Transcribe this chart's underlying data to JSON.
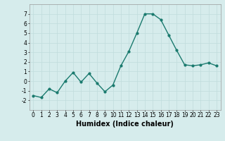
{
  "x": [
    0,
    1,
    2,
    3,
    4,
    5,
    6,
    7,
    8,
    9,
    10,
    11,
    12,
    13,
    14,
    15,
    16,
    17,
    18,
    19,
    20,
    21,
    22,
    23
  ],
  "y": [
    -1.5,
    -1.7,
    -0.8,
    -1.2,
    0.0,
    0.9,
    -0.1,
    0.8,
    -0.2,
    -1.1,
    -0.4,
    1.6,
    3.1,
    5.0,
    7.0,
    7.0,
    6.4,
    4.8,
    3.2,
    1.7,
    1.6,
    1.7,
    1.9,
    1.6
  ],
  "line_color": "#1a7a6e",
  "marker": "o",
  "marker_size": 2,
  "linewidth": 1.0,
  "xlabel": "Humidex (Indice chaleur)",
  "xlabel_fontsize": 7,
  "ylim": [
    -3,
    8
  ],
  "xlim": [
    -0.5,
    23.5
  ],
  "yticks": [
    -2,
    -1,
    0,
    1,
    2,
    3,
    4,
    5,
    6,
    7
  ],
  "xticks": [
    0,
    1,
    2,
    3,
    4,
    5,
    6,
    7,
    8,
    9,
    10,
    11,
    12,
    13,
    14,
    15,
    16,
    17,
    18,
    19,
    20,
    21,
    22,
    23
  ],
  "grid_color": "#c0dcdc",
  "background_color": "#d6ecec",
  "tick_fontsize": 5.5,
  "title": ""
}
